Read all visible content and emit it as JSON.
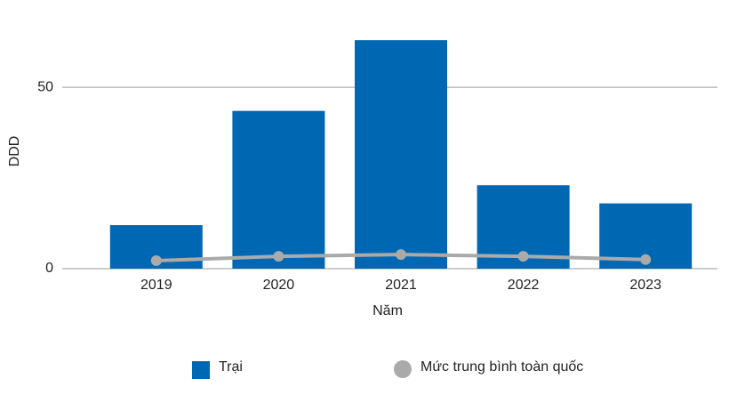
{
  "chart_data": {
    "type": "bar",
    "categories": [
      "2019",
      "2020",
      "2021",
      "2022",
      "2023"
    ],
    "x_label": "Năm",
    "y_label": "DDD",
    "ylim": [
      0,
      65
    ],
    "yticks": [
      0,
      50
    ],
    "grid": true,
    "series": [
      {
        "name": "Trại",
        "type": "bar",
        "color": "#0068b3",
        "values": [
          12,
          43.5,
          63,
          23,
          18
        ]
      },
      {
        "name": "Mức trung bình toàn quốc",
        "type": "line",
        "color": "#aaaaaa",
        "values": [
          2.2,
          3.4,
          3.9,
          3.4,
          2.5
        ]
      }
    ]
  }
}
